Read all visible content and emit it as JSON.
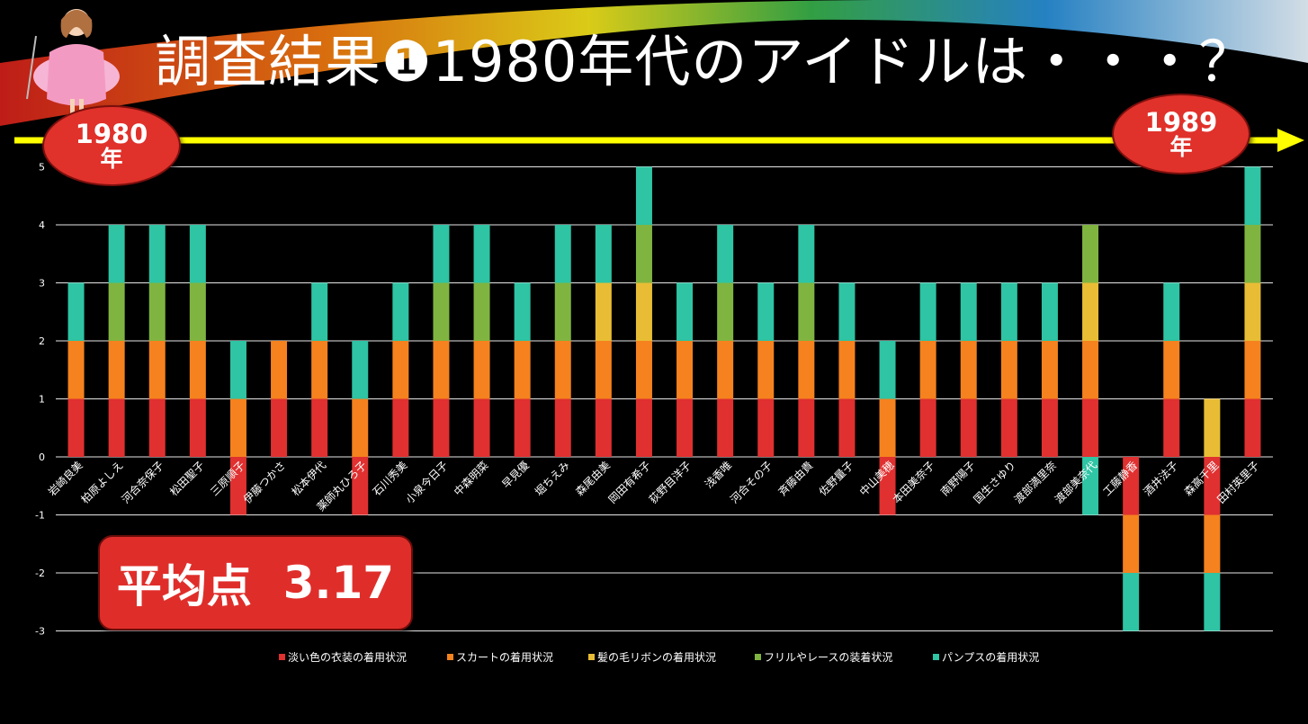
{
  "title": "調査結果❶1980年代のアイドルは・・・？",
  "timeline": {
    "start_num": "1980",
    "start_unit": "年",
    "end_num": "1989",
    "end_unit": "年"
  },
  "average": {
    "label": "平均点",
    "value": "3.17"
  },
  "colors": {
    "arrow": "#ffff00",
    "badge": "#e0312b",
    "grid": "#ffffff"
  },
  "chart_data": {
    "type": "bar",
    "stacked": true,
    "title": "",
    "xlabel": "",
    "ylabel": "",
    "ylim": [
      -3,
      5
    ],
    "yticks": [
      -3,
      -2,
      -1,
      0,
      1,
      2,
      3,
      4,
      5
    ],
    "grid": true,
    "legend_position": "bottom",
    "categories": [
      "岩崎良美",
      "柏原よしえ",
      "河合奈保子",
      "松田聖子",
      "三原順子",
      "伊藤つかさ",
      "松本伊代",
      "薬師丸ひろ子",
      "石川秀美",
      "小泉今日子",
      "中森明菜",
      "早見優",
      "堀ちえみ",
      "森尾由美",
      "岡田有希子",
      "荻野目洋子",
      "浅香唯",
      "河合その子",
      "斉藤由貴",
      "佐野量子",
      "中山美穂",
      "本田美奈子",
      "南野陽子",
      "国生さゆり",
      "渡部満里奈",
      "渡部美奈代",
      "工藤静香",
      "酒井法子",
      "森高千里",
      "田村英里子"
    ],
    "series": [
      {
        "name": "淡い色の衣装の着用状況",
        "color": "#e03030",
        "values": [
          1,
          1,
          1,
          1,
          -1,
          1,
          1,
          -1,
          1,
          1,
          1,
          1,
          1,
          1,
          1,
          1,
          1,
          1,
          1,
          1,
          -1,
          1,
          1,
          1,
          1,
          1,
          -1,
          1,
          -1,
          1
        ]
      },
      {
        "name": "スカートの着用状況",
        "color": "#f5821e",
        "values": [
          1,
          1,
          1,
          1,
          1,
          1,
          1,
          1,
          1,
          1,
          1,
          1,
          1,
          1,
          1,
          1,
          1,
          1,
          1,
          1,
          1,
          1,
          1,
          1,
          1,
          1,
          -1,
          1,
          -1,
          1
        ]
      },
      {
        "name": "髪の毛リボンの着用状況",
        "color": "#e8bd35",
        "values": [
          0,
          0,
          0,
          0,
          0,
          0,
          0,
          0,
          0,
          0,
          0,
          0,
          0,
          1,
          1,
          0,
          0,
          0,
          0,
          0,
          0,
          0,
          0,
          0,
          0,
          1,
          0,
          0,
          1,
          1
        ]
      },
      {
        "name": "フリルやレースの装着状況",
        "color": "#80b440",
        "values": [
          0,
          1,
          1,
          1,
          0,
          0,
          0,
          0,
          0,
          1,
          1,
          0,
          1,
          0,
          1,
          0,
          1,
          0,
          1,
          0,
          0,
          0,
          0,
          0,
          0,
          1,
          0,
          0,
          0,
          1
        ]
      },
      {
        "name": "パンプスの着用状況",
        "color": "#2ec4a4",
        "values": [
          1,
          1,
          1,
          1,
          1,
          0,
          1,
          1,
          1,
          1,
          1,
          1,
          1,
          1,
          1,
          1,
          1,
          1,
          1,
          1,
          1,
          1,
          1,
          1,
          1,
          -1,
          -1,
          1,
          -1,
          1
        ]
      }
    ]
  }
}
